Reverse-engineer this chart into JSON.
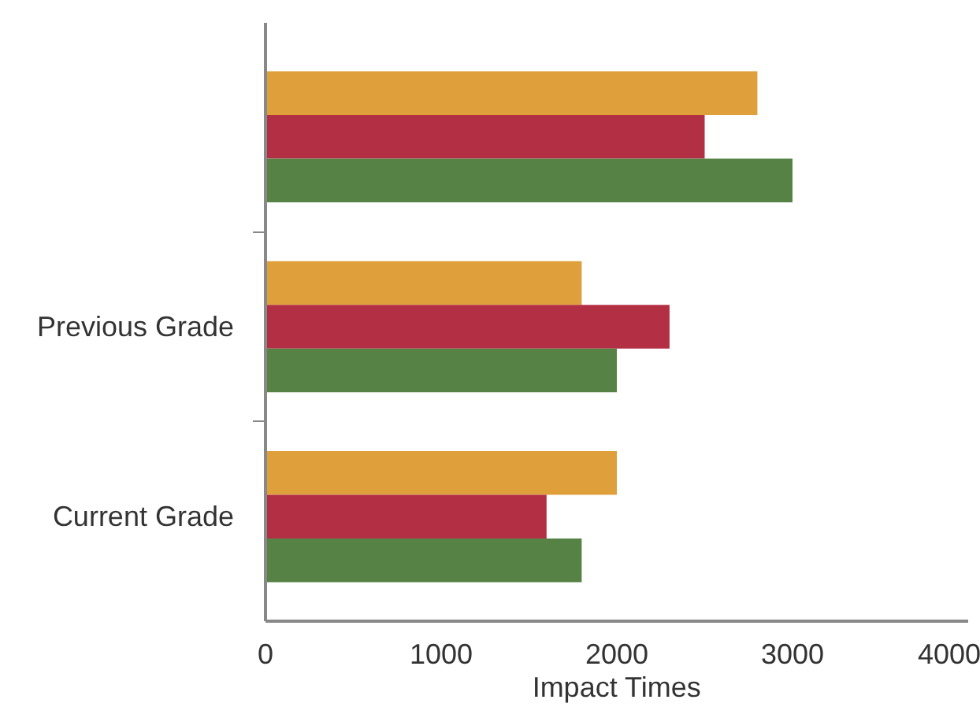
{
  "chart_data": {
    "type": "bar",
    "orientation": "horizontal",
    "categories": [
      null,
      "Previous Grade",
      "Current Grade"
    ],
    "xlabel": "Impact Times",
    "xlim": [
      0,
      4000
    ],
    "xticks": [
      0,
      1000,
      2000,
      3000,
      4000
    ],
    "grid": false,
    "series": [
      {
        "color": "#df9f3a",
        "values": [
          2800,
          1800,
          2000
        ]
      },
      {
        "color": "#b32f43",
        "values": [
          2500,
          2300,
          1600
        ]
      },
      {
        "color": "#578246",
        "values": [
          3000,
          2000,
          1800
        ]
      }
    ]
  }
}
